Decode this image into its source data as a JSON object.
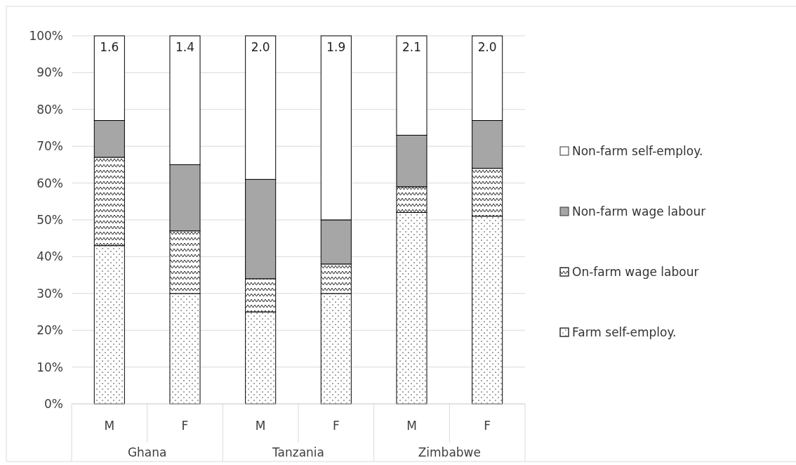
{
  "chart_data": {
    "type": "bar",
    "stacked": true,
    "categories": [
      "M",
      "F",
      "M",
      "F",
      "M",
      "F"
    ],
    "series": [
      {
        "name": "Farm self-employ.",
        "color": "#ffffff",
        "values": [
          43,
          30,
          25,
          30,
          52,
          51
        ]
      },
      {
        "name": "On-farm wage labour",
        "color": "#ffffff",
        "values": [
          24,
          17,
          9,
          8,
          7,
          13
        ]
      },
      {
        "name": "Non-farm wage labour",
        "color": "#a6a6a6",
        "values": [
          10,
          18,
          27,
          12,
          14,
          13
        ]
      },
      {
        "name": "Non-farm self-employ.",
        "color": "#ffffff",
        "values": [
          23,
          35,
          39,
          50,
          27,
          23
        ]
      }
    ],
    "ylim": [
      0,
      100
    ],
    "yticks": [
      {
        "value": 0,
        "label": "0%"
      },
      {
        "value": 10,
        "label": "10%"
      },
      {
        "value": 20,
        "label": "20%"
      },
      {
        "value": 30,
        "label": "30%"
      },
      {
        "value": 40,
        "label": "40%"
      },
      {
        "value": 50,
        "label": "50%"
      },
      {
        "value": 60,
        "label": "60%"
      },
      {
        "value": 70,
        "label": "70%"
      },
      {
        "value": 80,
        "label": "80%"
      },
      {
        "value": 90,
        "label": "90%"
      },
      {
        "value": 100,
        "label": "100%"
      }
    ],
    "grid": "y",
    "legend": "right",
    "annotations": [
      "1.6",
      "1.4",
      "2.0",
      "1.9",
      "2.1",
      "2.0",
      "Ghana",
      "Tanzania",
      "Zimbabwe"
    ]
  }
}
